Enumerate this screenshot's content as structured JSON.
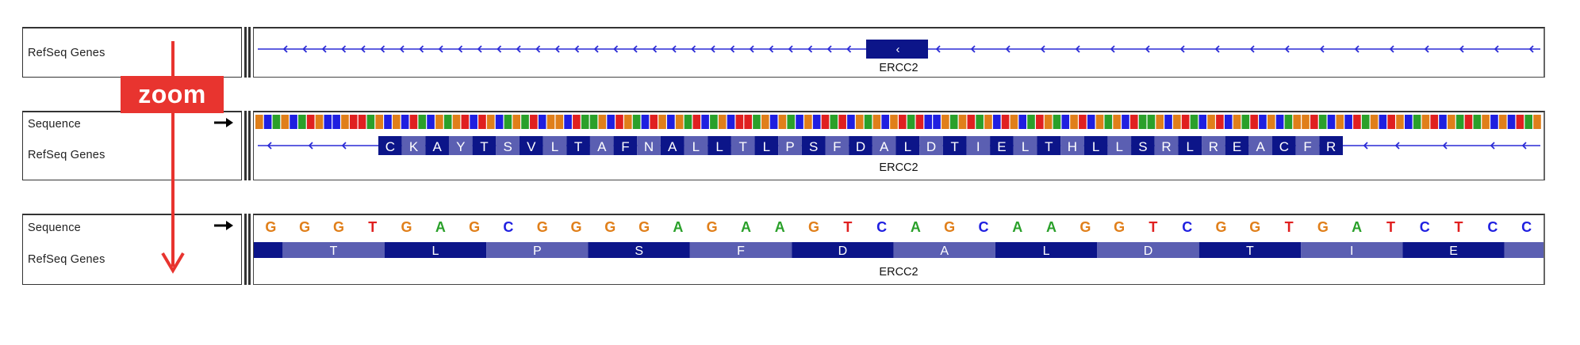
{
  "colors": {
    "A": "#2aa02a",
    "C": "#1f1fe0",
    "G": "#e07f1a",
    "T": "#e02020",
    "gene_line": "#2a2ad6",
    "exon_dark": "#0c1589",
    "exon_light": "#5b5fb2",
    "zoom": "#e8342f"
  },
  "zoom_label": "zoom",
  "panels": [
    {
      "id": "overview",
      "tracks": [
        "RefSeq Genes"
      ],
      "gene_name": "ERCC2",
      "strand_glyph": "‹"
    },
    {
      "id": "mid",
      "tracks": [
        "Sequence",
        "RefSeq Genes"
      ],
      "gene_name": "ERCC2",
      "sequence_bars": "GCAGCATGCCGTTAGCGCTACGAGTCTGCAGATCGGCTAAGCTGACTGCGATCAGCTTAGCGACGCTATCGAGCGTATCCGAGTAGCTGCATGACGTCGAGCTAAGCGTACGTCGATCGCAGGTACGCTAGCTGCAGTCGATAGCGCTAG",
      "amino_acids": [
        "C",
        "K",
        "A",
        "Y",
        "T",
        "S",
        "V",
        "L",
        "T",
        "A",
        "F",
        "N",
        "A",
        "L",
        "L",
        "T",
        "L",
        "P",
        "S",
        "F",
        "D",
        "A",
        "L",
        "D",
        "T",
        "I",
        "E",
        "L",
        "T",
        "H",
        "L",
        "L",
        "S",
        "R",
        "L",
        "R",
        "E",
        "A",
        "C",
        "F",
        "R"
      ]
    },
    {
      "id": "detail",
      "tracks": [
        "Sequence",
        "RefSeq Genes"
      ],
      "gene_name": "ERCC2",
      "bases": [
        "G",
        "G",
        "G",
        "T",
        "G",
        "A",
        "G",
        "C",
        "G",
        "G",
        "G",
        "G",
        "A",
        "G",
        "A",
        "A",
        "G",
        "T",
        "C",
        "A",
        "G",
        "C",
        "A",
        "A",
        "G",
        "G",
        "T",
        "C",
        "G",
        "G",
        "T",
        "G",
        "A",
        "T",
        "C",
        "T",
        "C",
        "C"
      ],
      "amino_acids": [
        "T",
        "L",
        "P",
        "S",
        "F",
        "D",
        "A",
        "L",
        "D",
        "T",
        "I",
        "E"
      ]
    }
  ]
}
